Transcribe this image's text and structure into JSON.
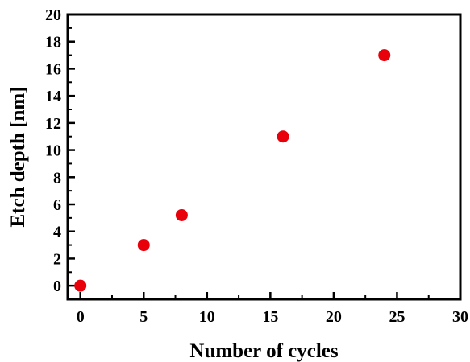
{
  "chart_data": {
    "type": "scatter",
    "title": "",
    "xlabel": "Number of cycles",
    "ylabel": "Etch depth [nm]",
    "xlim": [
      -1,
      30
    ],
    "ylim": [
      -1,
      20
    ],
    "xticks": [
      0,
      5,
      10,
      15,
      20,
      25,
      30
    ],
    "yticks": [
      0,
      2,
      4,
      6,
      8,
      10,
      12,
      14,
      16,
      18,
      20
    ],
    "grid": false,
    "legend": "none",
    "marker_color": "#e8000b",
    "series": [
      {
        "x": [
          0,
          5,
          8,
          16,
          24
        ],
        "y": [
          0,
          3,
          5.2,
          11,
          17
        ]
      }
    ]
  }
}
